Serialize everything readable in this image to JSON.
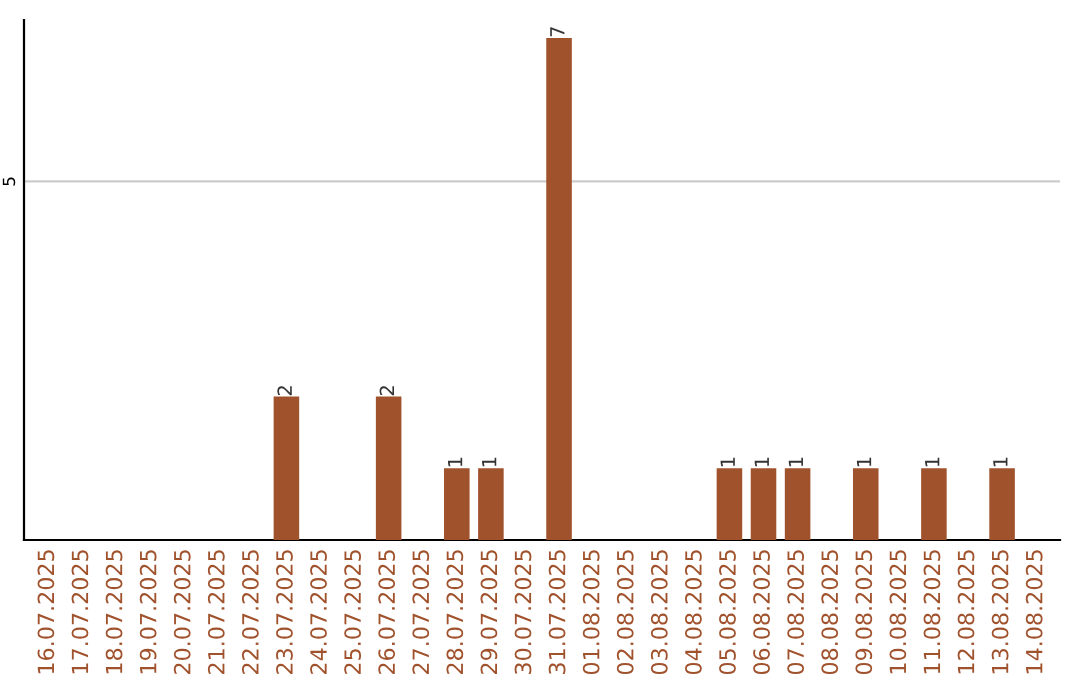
{
  "chart_data": {
    "type": "bar",
    "categories": [
      "16.07.2025",
      "17.07.2025",
      "18.07.2025",
      "19.07.2025",
      "20.07.2025",
      "21.07.2025",
      "22.07.2025",
      "23.07.2025",
      "24.07.2025",
      "25.07.2025",
      "26.07.2025",
      "27.07.2025",
      "28.07.2025",
      "29.07.2025",
      "30.07.2025",
      "31.07.2025",
      "01.08.2025",
      "02.08.2025",
      "03.08.2025",
      "04.08.2025",
      "05.08.2025",
      "06.08.2025",
      "07.08.2025",
      "08.08.2025",
      "09.08.2025",
      "10.08.2025",
      "11.08.2025",
      "12.08.2025",
      "13.08.2025",
      "14.08.2025"
    ],
    "values": [
      0,
      0,
      0,
      0,
      0,
      0,
      0,
      2,
      0,
      0,
      2,
      0,
      1,
      1,
      0,
      7,
      0,
      0,
      0,
      0,
      1,
      1,
      1,
      0,
      1,
      0,
      1,
      0,
      1,
      0
    ],
    "value_labels": [
      null,
      null,
      null,
      null,
      null,
      null,
      null,
      "2",
      null,
      null,
      "2",
      null,
      "1",
      "1",
      null,
      "7",
      null,
      null,
      null,
      null,
      "1",
      "1",
      "1",
      null,
      "1",
      null,
      "1",
      null,
      "1",
      null
    ],
    "color": "#a0522d",
    "ylim": [
      0,
      7.25
    ],
    "yticks": [
      5
    ],
    "grid": "y"
  }
}
